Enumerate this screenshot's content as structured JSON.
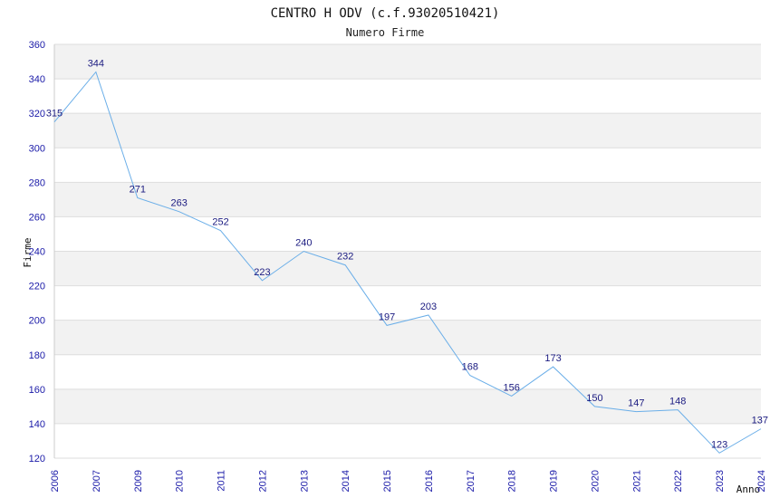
{
  "chart_data": {
    "type": "line",
    "title": "CENTRO H ODV (c.f.93020510421)",
    "subtitle": "Numero Firme",
    "xlabel": "Anno",
    "ylabel": "Firme",
    "categories": [
      "2006",
      "2007",
      "2009",
      "2010",
      "2011",
      "2012",
      "2013",
      "2014",
      "2015",
      "2016",
      "2017",
      "2018",
      "2019",
      "2020",
      "2021",
      "2022",
      "2023",
      "2024"
    ],
    "values": [
      315,
      344,
      271,
      263,
      252,
      223,
      240,
      232,
      197,
      203,
      168,
      156,
      173,
      150,
      147,
      148,
      123,
      137
    ],
    "ylim": [
      120,
      360
    ],
    "yticks": [
      120,
      140,
      160,
      180,
      200,
      220,
      240,
      260,
      280,
      300,
      320,
      340,
      360
    ],
    "grid": true,
    "colors": {
      "line": "#6aaee8",
      "band": "#f2f2f2",
      "grid": "#dddddd",
      "tick": "#1a1aa8"
    }
  }
}
